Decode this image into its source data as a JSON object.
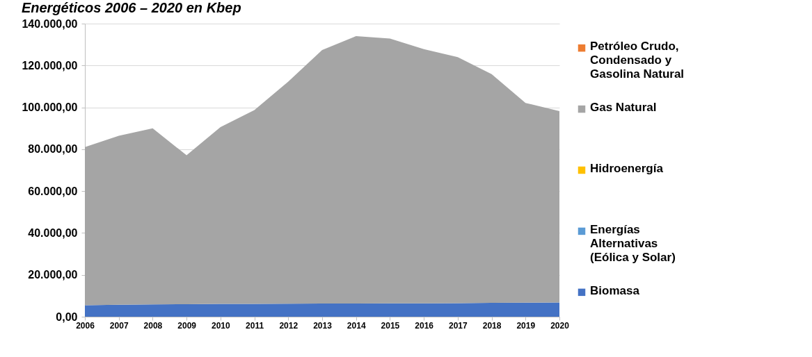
{
  "chart_data": {
    "type": "area",
    "title": "Energéticos 2006 – 2020 en Kbep",
    "stacked": true,
    "grid": "y",
    "legend": "right",
    "categories": [
      "2006",
      "2007",
      "2008",
      "2009",
      "2010",
      "2011",
      "2012",
      "2013",
      "2014",
      "2015",
      "2016",
      "2017",
      "2018",
      "2019",
      "2020"
    ],
    "ylim": [
      0,
      140000
    ],
    "yticks": [
      {
        "value": 0,
        "label": "0,00"
      },
      {
        "value": 20000,
        "label": "20.000,00"
      },
      {
        "value": 40000,
        "label": "40.000,00"
      },
      {
        "value": 60000,
        "label": "60.000,00"
      },
      {
        "value": 80000,
        "label": "80.000,00"
      },
      {
        "value": 100000,
        "label": "100.000,00"
      },
      {
        "value": 120000,
        "label": "120.000,00"
      },
      {
        "value": 140000,
        "label": "140.000,00"
      }
    ],
    "series": [
      {
        "name": "Biomasa",
        "color": "#4472c4",
        "values": [
          5500,
          5700,
          5900,
          6000,
          6100,
          6100,
          6200,
          6300,
          6300,
          6400,
          6400,
          6500,
          6600,
          6700,
          6800
        ]
      },
      {
        "name": "Energías Alternativas (Eólica y Solar)",
        "color": "#5b9bd5",
        "values": [
          null,
          null,
          null,
          null,
          null,
          null,
          null,
          null,
          null,
          null,
          null,
          null,
          null,
          null,
          null
        ]
      },
      {
        "name": "Hidroenergía",
        "color": "#ffc000",
        "values": [
          null,
          null,
          null,
          null,
          null,
          null,
          null,
          null,
          null,
          null,
          null,
          null,
          null,
          null,
          null
        ]
      },
      {
        "name": "Gas Natural",
        "color": "#a5a5a5",
        "values": [
          75500,
          80700,
          84100,
          71100,
          84500,
          92600,
          106100,
          121100,
          127700,
          126500,
          121400,
          117500,
          109300,
          95400,
          91400
        ]
      },
      {
        "name": "Petróleo Crudo, Condensado y Gasolina Natural",
        "color": "#ed7d31",
        "values": [
          null,
          null,
          null,
          null,
          null,
          null,
          null,
          null,
          null,
          null,
          null,
          null,
          null,
          null,
          null
        ]
      }
    ]
  }
}
